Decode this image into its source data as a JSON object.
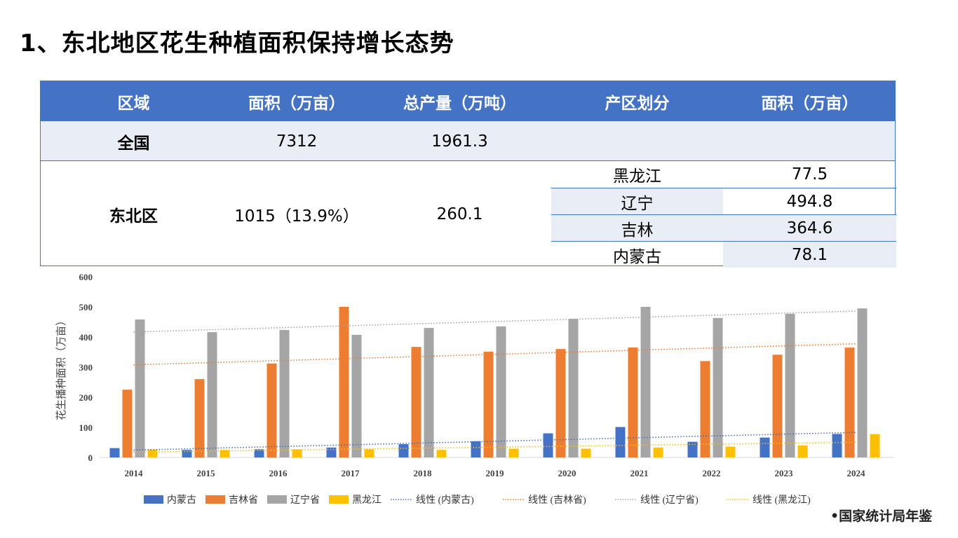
{
  "title": "1、东北地区花生种植面积保持增长态势",
  "table": {
    "headers": [
      "区域",
      "面积（万亩）",
      "总产量（万吨）",
      "产区划分",
      "面积（万亩）"
    ],
    "national": {
      "region": "全国",
      "area": "7312",
      "output": "1961.3"
    },
    "northeast": {
      "region": "东北区",
      "area": "1015（13.9%）",
      "output": "260.1",
      "subregions": [
        {
          "name": "黑龙江",
          "area": "77.5"
        },
        {
          "name": "辽宁",
          "area": "494.8"
        },
        {
          "name": "吉林",
          "area": "364.6"
        },
        {
          "name": "内蒙古",
          "area": "78.1"
        }
      ]
    }
  },
  "source": "•国家统计局年鉴",
  "chart_data": {
    "type": "bar",
    "ylabel": "花生播种面积（万亩）",
    "ylim": [
      0,
      600
    ],
    "yticks": [
      "0",
      "100",
      "200",
      "300",
      "400",
      "500",
      "600"
    ],
    "categories": [
      "2014",
      "2015",
      "2016",
      "2017",
      "2018",
      "2019",
      "2020",
      "2021",
      "2022",
      "2023",
      "2024"
    ],
    "series": [
      {
        "name": "内蒙古",
        "color": "#4472c4",
        "values": [
          31,
          25,
          27,
          33,
          44,
          54,
          80,
          101,
          52,
          66,
          78.1
        ]
      },
      {
        "name": "吉林省",
        "color": "#ed7d31",
        "values": [
          225,
          260,
          312,
          500,
          367,
          351,
          360,
          365,
          320,
          341,
          364.6
        ]
      },
      {
        "name": "辽宁省",
        "color": "#a5a5a5",
        "values": [
          458,
          416,
          423,
          407,
          430,
          435,
          460,
          500,
          463,
          477,
          494.8
        ]
      },
      {
        "name": "黑龙江",
        "color": "#ffc000",
        "values": [
          26,
          25,
          27,
          27,
          25,
          29,
          29,
          33,
          36,
          40,
          77.5
        ]
      }
    ],
    "trendlines": [
      {
        "name": "线性 (内蒙古)",
        "color": "#4472c4",
        "type": "linear"
      },
      {
        "name": "线性 (吉林省)",
        "color": "#ed7d31",
        "type": "linear"
      },
      {
        "name": "线性 (辽宁省)",
        "color": "#a5a5a5",
        "type": "linear"
      },
      {
        "name": "线性 (黑龙江)",
        "color": "#ffc000",
        "type": "linear"
      }
    ],
    "legend": "bottom",
    "grid": false
  }
}
